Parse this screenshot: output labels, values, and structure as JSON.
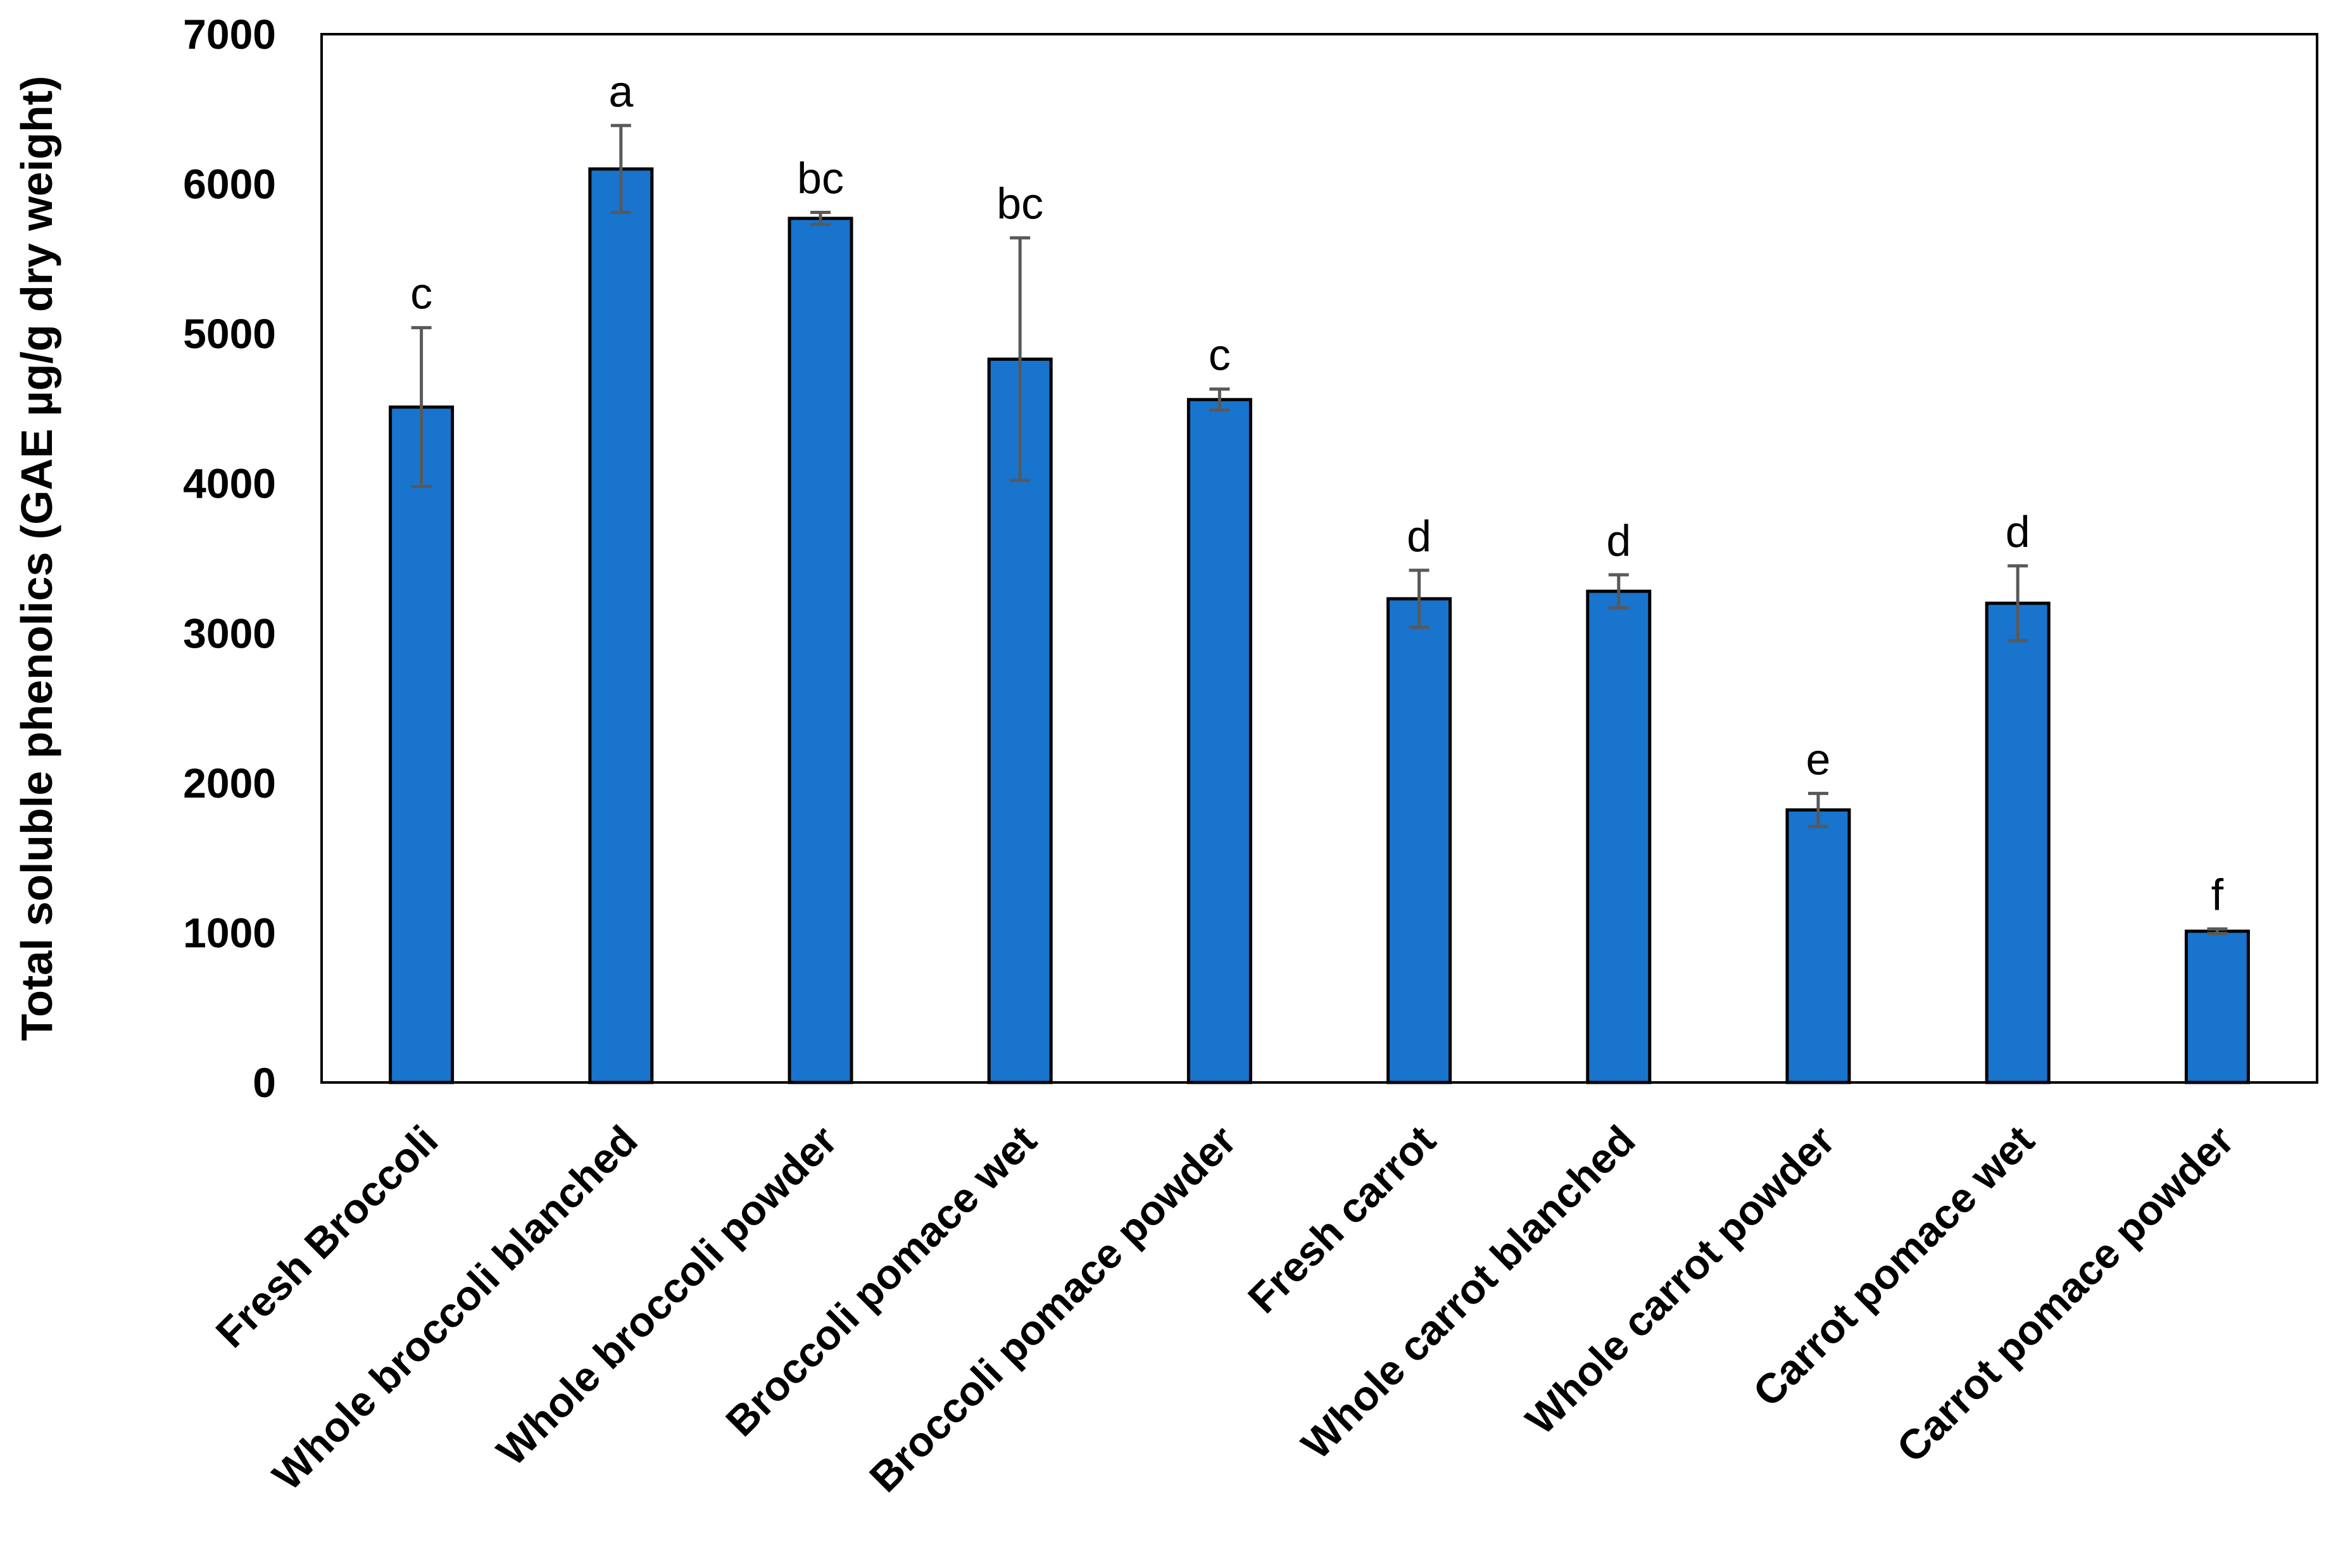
{
  "colors": {
    "bar": "#1874CD",
    "bar_outline": "#000000",
    "error_bar": "#595959"
  },
  "chart_data": {
    "type": "bar",
    "title": "",
    "xlabel": "",
    "ylabel": "Total soluble phenolics (GAE µg/g dry weight)",
    "ylim": [
      0,
      7000
    ],
    "yticks": [
      "0",
      "1000",
      "2000",
      "3000",
      "4000",
      "5000",
      "6000",
      "7000"
    ],
    "grid": false,
    "legend": "none",
    "categories": [
      "Fresh Broccoli",
      "Whole broccoli blanched",
      "Whole broccoli powder",
      "Broccoli pomace wet",
      "Broccoli pomace powder",
      "Fresh carrot",
      "Whole carrot blanched",
      "Whole carrot powder",
      "Carrot pomace wet",
      "Carrot pomace powder"
    ],
    "values": [
      4510,
      6100,
      5770,
      4830,
      4560,
      3230,
      3280,
      1820,
      3200,
      1010
    ],
    "error": [
      530,
      290,
      40,
      810,
      70,
      190,
      110,
      110,
      250,
      15
    ],
    "significance_labels": [
      "c",
      "a",
      "bc",
      "bc",
      "c",
      "d",
      "d",
      "e",
      "d",
      "f"
    ]
  }
}
